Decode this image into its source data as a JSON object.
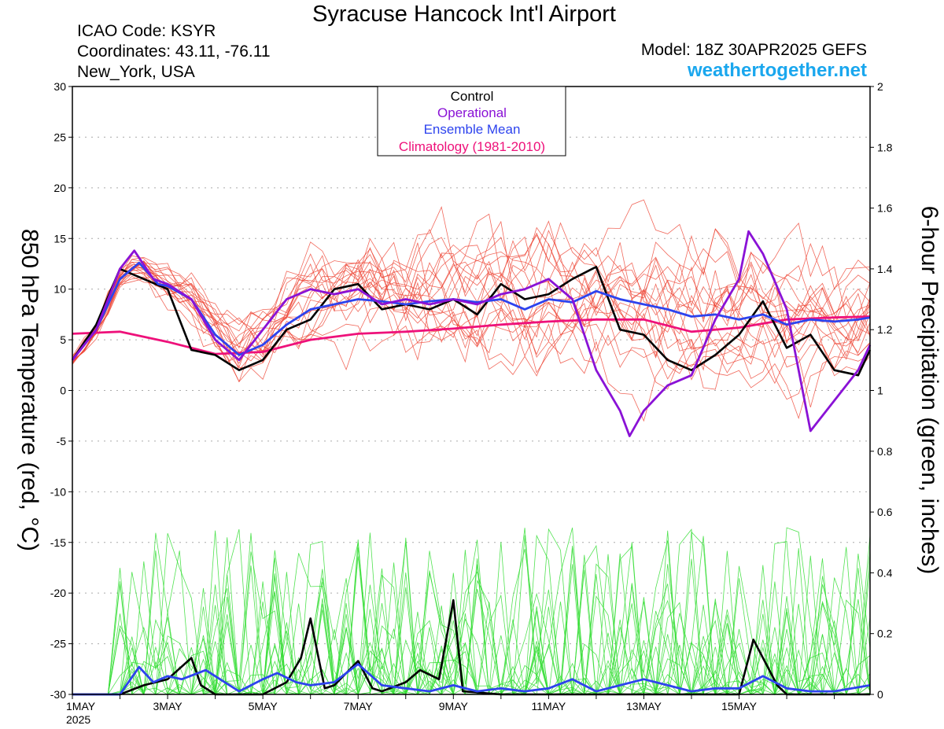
{
  "header": {
    "title": "Syracuse Hancock Int'l Airport",
    "icao": "ICAO Code: KSYR",
    "coordinates": "Coordinates: 43.11, -76.11",
    "location": "New_York, USA",
    "model": "Model: 18Z 30APR2025 GEFS",
    "site": "weathertogether.net"
  },
  "colors": {
    "control": "#000000",
    "operational": "#8a12d6",
    "ensemble_mean": "#2d43ee",
    "climatology": "#ee117a",
    "members_temp": "#ee4433",
    "members_precip": "#33dd33"
  },
  "chart_data": {
    "type": "line",
    "title": "Syracuse Hancock Int'l Airport",
    "ylabel": "850 hPa Temperature (red, °C)",
    "y2label": "6-hour Precipitation (green, inches)",
    "ylim": [
      -30,
      30
    ],
    "y2lim": [
      0,
      2
    ],
    "yticks": [
      "30",
      "25",
      "20",
      "15",
      "10",
      "5",
      "0",
      "-5",
      "-10",
      "-15",
      "-20",
      "-25",
      "-30"
    ],
    "y2ticks": [
      "2",
      "1.8",
      "1.6",
      "1.4",
      "1.2",
      "1",
      "0.8",
      "0.6",
      "0.4",
      "0.2",
      "0"
    ],
    "x_unit": "day of May 2025",
    "xlim": [
      1,
      17.75
    ],
    "xticks": [
      {
        "day": 1,
        "label": "1MAY",
        "sub": "2025"
      },
      {
        "day": 3,
        "label": "3MAY"
      },
      {
        "day": 5,
        "label": "5MAY"
      },
      {
        "day": 7,
        "label": "7MAY"
      },
      {
        "day": 9,
        "label": "9MAY"
      },
      {
        "day": 11,
        "label": "11MAY"
      },
      {
        "day": 13,
        "label": "13MAY"
      },
      {
        "day": 15,
        "label": "15MAY"
      }
    ],
    "legend": {
      "placement": "top-center",
      "entries": [
        "Control",
        "Operational",
        "Ensemble Mean",
        "Climatology (1981-2010)"
      ]
    },
    "grid": true,
    "temperature_series": [
      {
        "name": "Control",
        "role": "control",
        "points": [
          [
            1,
            3
          ],
          [
            1.5,
            6.5
          ],
          [
            2,
            12
          ],
          [
            2.5,
            11
          ],
          [
            3,
            10
          ],
          [
            3.5,
            4
          ],
          [
            4,
            3.5
          ],
          [
            4.5,
            2
          ],
          [
            5,
            3
          ],
          [
            5.5,
            6
          ],
          [
            6,
            7
          ],
          [
            6.5,
            10
          ],
          [
            7,
            10.5
          ],
          [
            7.5,
            8
          ],
          [
            8,
            8.5
          ],
          [
            8.5,
            8
          ],
          [
            9,
            9
          ],
          [
            9.5,
            7.5
          ],
          [
            10,
            10.5
          ],
          [
            10.5,
            9
          ],
          [
            11,
            9.5
          ],
          [
            11.5,
            11
          ],
          [
            12,
            12.2
          ],
          [
            12.5,
            6
          ],
          [
            13,
            5.5
          ],
          [
            13.5,
            3
          ],
          [
            14,
            2
          ],
          [
            14.5,
            3.5
          ],
          [
            15,
            5.5
          ],
          [
            15.5,
            8.8
          ],
          [
            16,
            4.2
          ],
          [
            16.5,
            5.5
          ],
          [
            17,
            2
          ],
          [
            17.5,
            1.5
          ],
          [
            17.75,
            4
          ]
        ]
      },
      {
        "name": "Operational",
        "role": "operational",
        "points": [
          [
            1,
            3
          ],
          [
            1.5,
            6
          ],
          [
            2,
            12
          ],
          [
            2.3,
            13.8
          ],
          [
            2.7,
            11
          ],
          [
            3,
            10.5
          ],
          [
            3.5,
            9
          ],
          [
            4,
            5
          ],
          [
            4.5,
            3
          ],
          [
            5,
            6
          ],
          [
            5.5,
            9
          ],
          [
            6,
            10
          ],
          [
            6.5,
            9.5
          ],
          [
            7,
            10
          ],
          [
            7.5,
            8.5
          ],
          [
            8,
            9
          ],
          [
            8.5,
            8.5
          ],
          [
            9,
            9
          ],
          [
            9.5,
            8.5
          ],
          [
            10,
            9.5
          ],
          [
            10.5,
            10
          ],
          [
            11,
            11
          ],
          [
            11.5,
            9
          ],
          [
            12,
            2
          ],
          [
            12.5,
            -2
          ],
          [
            12.7,
            -4.5
          ],
          [
            13,
            -2
          ],
          [
            13.5,
            0.5
          ],
          [
            14,
            1.5
          ],
          [
            14.5,
            7
          ],
          [
            15,
            11
          ],
          [
            15.2,
            15.7
          ],
          [
            15.5,
            13.5
          ],
          [
            16,
            8
          ],
          [
            16.5,
            -4
          ],
          [
            17,
            -1
          ],
          [
            17.5,
            2
          ],
          [
            17.75,
            4.5
          ]
        ]
      },
      {
        "name": "Ensemble Mean",
        "role": "ensemble_mean",
        "points": [
          [
            1,
            3
          ],
          [
            1.5,
            6
          ],
          [
            2,
            11
          ],
          [
            2.4,
            12.6
          ],
          [
            2.8,
            10.5
          ],
          [
            3,
            10.3
          ],
          [
            3.5,
            9
          ],
          [
            4,
            5.5
          ],
          [
            4.5,
            3.5
          ],
          [
            5,
            4.5
          ],
          [
            5.5,
            6.5
          ],
          [
            6,
            8
          ],
          [
            6.5,
            8.5
          ],
          [
            7,
            9
          ],
          [
            7.5,
            8.8
          ],
          [
            8,
            8.5
          ],
          [
            8.5,
            8.8
          ],
          [
            9,
            9
          ],
          [
            9.5,
            8.7
          ],
          [
            10,
            9
          ],
          [
            10.5,
            8
          ],
          [
            11,
            9
          ],
          [
            11.5,
            8.7
          ],
          [
            12,
            9.8
          ],
          [
            12.5,
            9
          ],
          [
            13,
            8.5
          ],
          [
            13.5,
            8
          ],
          [
            14,
            7.3
          ],
          [
            14.5,
            7.5
          ],
          [
            15,
            7
          ],
          [
            15.5,
            7.5
          ],
          [
            16,
            6.5
          ],
          [
            16.5,
            7
          ],
          [
            17,
            6.8
          ],
          [
            17.5,
            7
          ],
          [
            17.75,
            7.2
          ]
        ]
      },
      {
        "name": "Climatology (1981-2010)",
        "role": "climatology",
        "points": [
          [
            1,
            5.6
          ],
          [
            2,
            5.8
          ],
          [
            3,
            4.8
          ],
          [
            4,
            3.6
          ],
          [
            5,
            3.8
          ],
          [
            6,
            5
          ],
          [
            7,
            5.6
          ],
          [
            8,
            5.8
          ],
          [
            9,
            6.1
          ],
          [
            10,
            6.5
          ],
          [
            11,
            6.8
          ],
          [
            12,
            7
          ],
          [
            13,
            7
          ],
          [
            14,
            5.8
          ],
          [
            15,
            6.2
          ],
          [
            16,
            7
          ],
          [
            16.5,
            7.1
          ],
          [
            17,
            7.2
          ],
          [
            17.75,
            7.3
          ]
        ]
      }
    ],
    "precipitation_series": [
      {
        "name": "Control",
        "role": "control",
        "points": [
          [
            1,
            0
          ],
          [
            2,
            0
          ],
          [
            2.5,
            0.03
          ],
          [
            3,
            0.05
          ],
          [
            3.5,
            0.12
          ],
          [
            3.7,
            0.03
          ],
          [
            4,
            0
          ],
          [
            5,
            0
          ],
          [
            5.5,
            0.04
          ],
          [
            5.8,
            0.12
          ],
          [
            6,
            0.25
          ],
          [
            6.3,
            0.02
          ],
          [
            6.5,
            0.03
          ],
          [
            7,
            0.11
          ],
          [
            7.3,
            0.02
          ],
          [
            7.5,
            0.01
          ],
          [
            8,
            0.04
          ],
          [
            8.3,
            0.08
          ],
          [
            8.7,
            0.05
          ],
          [
            9,
            0.31
          ],
          [
            9.2,
            0.01
          ],
          [
            10,
            0
          ],
          [
            11,
            0
          ],
          [
            13,
            0
          ],
          [
            15,
            0
          ],
          [
            15.3,
            0.18
          ],
          [
            15.8,
            0.03
          ],
          [
            16,
            0
          ],
          [
            17,
            0
          ],
          [
            17.75,
            0
          ]
        ]
      },
      {
        "name": "Ensemble Mean",
        "role": "ensemble_mean",
        "points": [
          [
            1,
            0
          ],
          [
            2,
            0
          ],
          [
            2.4,
            0.09
          ],
          [
            2.7,
            0.04
          ],
          [
            3,
            0.06
          ],
          [
            3.3,
            0.05
          ],
          [
            3.8,
            0.08
          ],
          [
            4,
            0.06
          ],
          [
            4.5,
            0.01
          ],
          [
            5,
            0.05
          ],
          [
            5.3,
            0.07
          ],
          [
            5.7,
            0.04
          ],
          [
            6,
            0.03
          ],
          [
            6.5,
            0.04
          ],
          [
            7,
            0.1
          ],
          [
            7.5,
            0.03
          ],
          [
            8,
            0.02
          ],
          [
            8.5,
            0.01
          ],
          [
            9,
            0.03
          ],
          [
            9.5,
            0.01
          ],
          [
            10,
            0.02
          ],
          [
            10.5,
            0.01
          ],
          [
            11,
            0.02
          ],
          [
            11.5,
            0.05
          ],
          [
            12,
            0.01
          ],
          [
            12.5,
            0.03
          ],
          [
            13,
            0.05
          ],
          [
            13.5,
            0.03
          ],
          [
            14,
            0.01
          ],
          [
            14.5,
            0.02
          ],
          [
            15,
            0.02
          ],
          [
            15.5,
            0.06
          ],
          [
            16,
            0.02
          ],
          [
            16.5,
            0.01
          ],
          [
            17,
            0.01
          ],
          [
            17.75,
            0.03
          ]
        ]
      }
    ]
  }
}
